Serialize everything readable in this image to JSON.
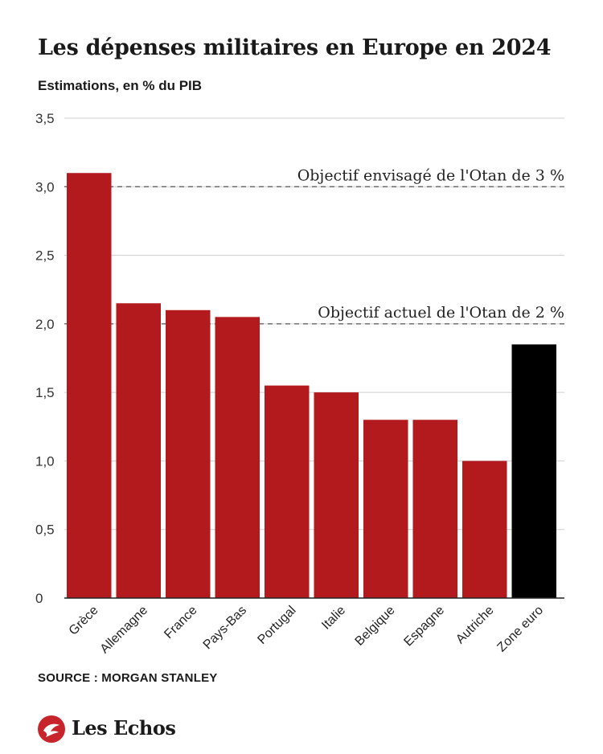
{
  "chart_data": {
    "type": "bar",
    "title": "Les dépenses militaires en Europe en 2024",
    "subtitle": "Estimations, en % du PIB",
    "categories": [
      "Grèce",
      "Allemagne",
      "France",
      "Pays-Bas",
      "Portugal",
      "Italie",
      "Belgique",
      "Espagne",
      "Autriche",
      "Zone euro"
    ],
    "values": [
      3.1,
      2.15,
      2.1,
      2.05,
      1.55,
      1.5,
      1.3,
      1.3,
      1.0,
      1.85
    ],
    "bar_colors": [
      "#b31a1e",
      "#b31a1e",
      "#b31a1e",
      "#b31a1e",
      "#b31a1e",
      "#b31a1e",
      "#b31a1e",
      "#b31a1e",
      "#b31a1e",
      "#000000"
    ],
    "ylim": [
      0,
      3.5
    ],
    "yticks": [
      0,
      0.5,
      1,
      1.5,
      2,
      2.5,
      3,
      3.5
    ],
    "ytick_labels": [
      "0",
      "0,5",
      "1,0",
      "1,5",
      "2,0",
      "2,5",
      "3,0",
      "3,5"
    ],
    "grid": true,
    "reference_lines": [
      {
        "value": 3,
        "label": "Objectif envisagé de l'Otan de 3 %"
      },
      {
        "value": 2,
        "label": "Objectif actuel de l'Otan de 2 %"
      }
    ]
  },
  "source": "SOURCE : MORGAN STANLEY",
  "brand": {
    "name": "Les Echos",
    "color": "#c8242b",
    "icon": "les-echos-logo-icon"
  }
}
